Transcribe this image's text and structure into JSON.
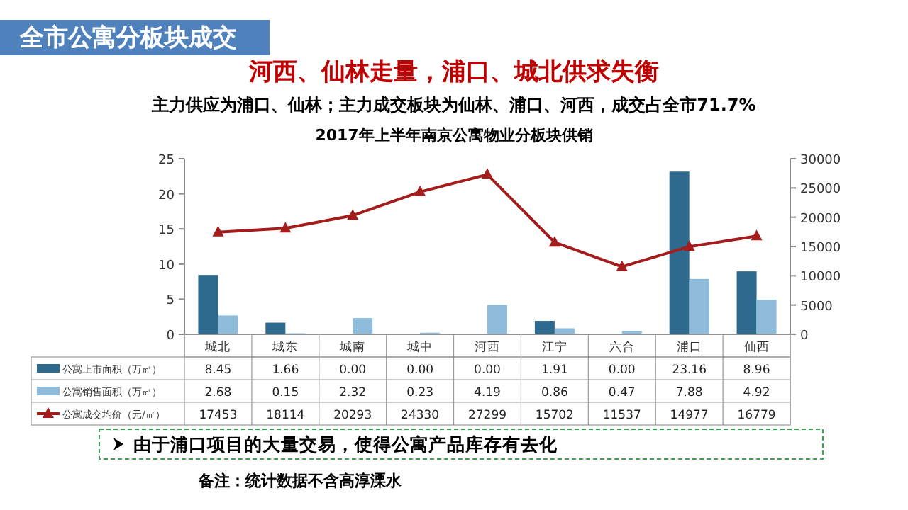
{
  "chart_data": {
    "type": "bar",
    "title": "全市公寓分板块成交",
    "subtitle": "2017年上半年南京公寓物业分板块供销",
    "annotations": [
      "河西、仙林走量，浦口、城北供求失衡",
      "主力供应为浦口、仙林；主力成交板块为仙林、浦口、河西，成交占全市71.7%",
      "由于浦口项目的大量交易，使得公寓产品库存有去化",
      "备注：统计数据不含高淳溧水"
    ],
    "categories": [
      "城北",
      "城东",
      "城南",
      "城中",
      "河西",
      "江宁",
      "六合",
      "浦口",
      "仙西"
    ],
    "series": [
      {
        "name": "公寓上市面积（万㎡）",
        "color": "#2e6a8e",
        "values": [
          8.45,
          1.66,
          0,
          0,
          0,
          1.91,
          0,
          23.16,
          8.96
        ],
        "value_labels": [
          "8.45",
          "1.66",
          "0.00",
          "0.00",
          "0.00",
          "1.91",
          "0.00",
          "23.16",
          "8.96"
        ]
      },
      {
        "name": "公寓销售面积（万㎡）",
        "color": "#8fbcdb",
        "values": [
          2.68,
          0.15,
          2.32,
          0.23,
          4.19,
          0.86,
          0.47,
          7.88,
          4.92
        ],
        "value_labels": [
          "2.68",
          "0.15",
          "2.32",
          "0.23",
          "4.19",
          "0.86",
          "0.47",
          "7.88",
          "4.92"
        ]
      },
      {
        "name": "公寓成交均价（元/㎡）",
        "type": "line",
        "axis": "y2",
        "color": "#a51c1c",
        "marker": "triangle",
        "values": [
          17453,
          18114,
          20293,
          24330,
          27299,
          15702,
          11537,
          14977,
          16779
        ],
        "value_labels": [
          "17453",
          "18114",
          "20293",
          "24330",
          "27299",
          "15702",
          "11537",
          "14977",
          "16779"
        ]
      }
    ],
    "ylim": [
      0,
      25
    ],
    "yticks": [
      0,
      5,
      10,
      15,
      20,
      25
    ],
    "y2lim": [
      0,
      30000
    ],
    "y2ticks": [
      0,
      5000,
      10000,
      15000,
      20000,
      25000,
      30000
    ],
    "legend": "bottom"
  }
}
